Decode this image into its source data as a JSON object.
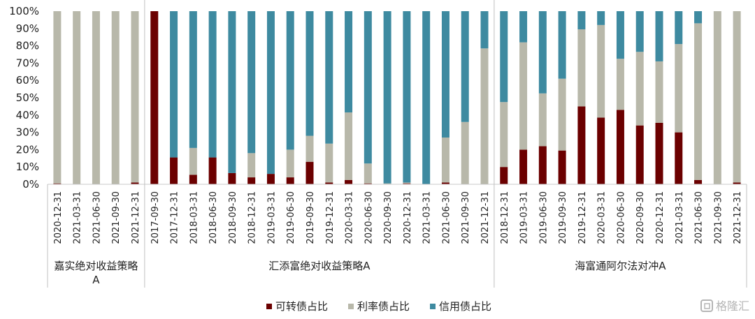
{
  "chart_data": {
    "type": "bar",
    "stacked": true,
    "normalized": true,
    "ylim": [
      0,
      100
    ],
    "yticks": [
      "0%",
      "10%",
      "20%",
      "30%",
      "40%",
      "50%",
      "60%",
      "70%",
      "80%",
      "90%",
      "100%"
    ],
    "colors": {
      "可转债占比": "#6b0000",
      "利率债占比": "#b8b8aa",
      "信用债占比": "#3e8aa0"
    },
    "legend": {
      "position": "bottom",
      "entries": [
        "可转债占比",
        "利率债占比",
        "信用债占比"
      ]
    },
    "groups": [
      {
        "name": "嘉实绝对收益策略A",
        "label_lines": [
          "嘉实绝对收益策略",
          "A"
        ],
        "categories": [
          "2020-12-31",
          "2021-03-31",
          "2021-06-30",
          "2021-09-30",
          "2021-12-31"
        ],
        "series": [
          {
            "name": "可转债占比",
            "values": [
              0.5,
              0,
              0,
              0,
              1
            ]
          },
          {
            "name": "利率债占比",
            "values": [
              99.5,
              100,
              100,
              100,
              99
            ]
          },
          {
            "name": "信用债占比",
            "values": [
              0,
              0,
              0,
              0,
              0
            ]
          }
        ]
      },
      {
        "name": "汇添富绝对收益策略A",
        "label_lines": [
          "汇添富绝对收益策略A"
        ],
        "categories": [
          "2017-09-30",
          "2017-12-31",
          "2018-03-31",
          "2018-06-30",
          "2018-09-30",
          "2018-12-31",
          "2019-03-31",
          "2019-06-30",
          "2019-09-30",
          "2019-12-31",
          "2020-03-31",
          "2020-06-30",
          "2020-09-30",
          "2020-12-31",
          "2021-03-31",
          "2021-06-30",
          "2021-09-30",
          "2021-12-31"
        ],
        "series": [
          {
            "name": "可转债占比",
            "values": [
              100,
              15.5,
              5.5,
              15.5,
              6.5,
              4,
              6,
              4,
              13,
              1,
              2.5,
              0.5,
              0,
              0.5,
              0,
              1,
              0,
              0
            ]
          },
          {
            "name": "利率债占比",
            "values": [
              0,
              0,
              15.5,
              0,
              0,
              14,
              0,
              16,
              15,
              22.5,
              39,
              11.5,
              0.5,
              0.5,
              0,
              26,
              36,
              78.5
            ]
          },
          {
            "name": "信用债占比",
            "values": [
              0,
              84.5,
              79,
              84.5,
              93.5,
              82,
              94,
              80,
              72,
              76.5,
              58.5,
              88,
              99.5,
              99,
              100,
              73,
              64,
              21.5
            ]
          }
        ]
      },
      {
        "name": "海富通阿尔法对冲A",
        "label_lines": [
          "海富通阿尔法对冲A"
        ],
        "categories": [
          "2018-12-31",
          "2019-03-31",
          "2019-06-30",
          "2019-09-30",
          "2019-12-31",
          "2020-03-31",
          "2020-06-30",
          "2020-09-30",
          "2020-12-31",
          "2021-03-31",
          "2021-06-30",
          "2021-09-30",
          "2021-12-31"
        ],
        "series": [
          {
            "name": "可转债占比",
            "values": [
              10,
              20,
              22,
              19.5,
              45,
              38.5,
              43,
              34,
              35.5,
              30,
              2.5,
              0,
              1
            ]
          },
          {
            "name": "利率债占比",
            "values": [
              37.5,
              62,
              30.5,
              41.5,
              44.5,
              53.5,
              29.5,
              42.5,
              35.5,
              51,
              90.5,
              100,
              99
            ]
          },
          {
            "name": "信用债占比",
            "values": [
              52.5,
              18,
              47.5,
              39,
              10.5,
              8,
              27.5,
              23.5,
              29,
              19,
              7,
              0,
              0
            ]
          }
        ]
      }
    ]
  },
  "watermark": "格隆汇"
}
